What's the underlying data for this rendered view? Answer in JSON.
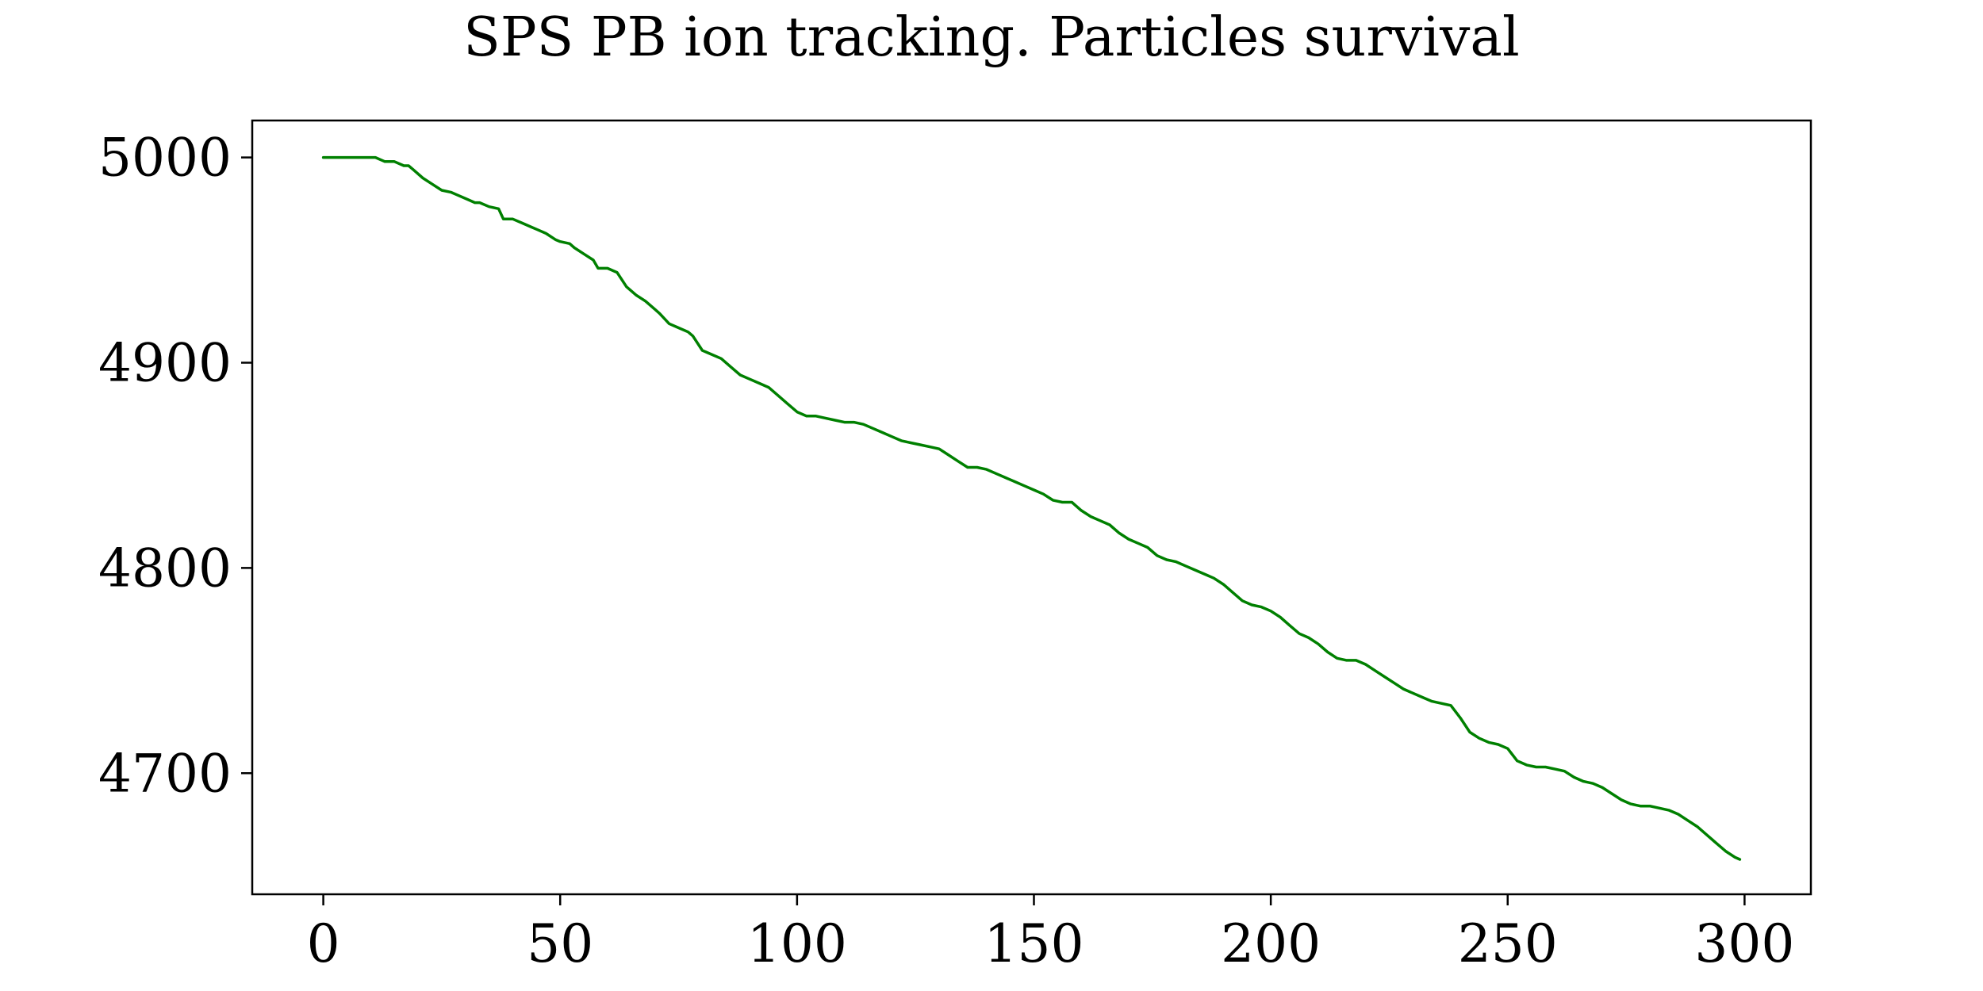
{
  "chart_data": {
    "type": "line",
    "title": "SPS PB ion tracking. Particles survival",
    "xlabel": "",
    "ylabel": "",
    "xlim": [
      -15,
      314
    ],
    "ylim": [
      4641,
      5018
    ],
    "xticks": [
      0,
      50,
      100,
      150,
      200,
      250,
      300
    ],
    "yticks": [
      4700,
      4800,
      4900,
      5000
    ],
    "xtick_labels": [
      "0",
      "50",
      "100",
      "150",
      "200",
      "250",
      "300"
    ],
    "ytick_labels": [
      "4700",
      "4800",
      "4900",
      "5000"
    ],
    "grid": false,
    "legend": "none",
    "line_color": "#008000",
    "series": [
      {
        "x": [
          0,
          5,
          10,
          11,
          13,
          15,
          17,
          18,
          19,
          21,
          23,
          25,
          27,
          28,
          30,
          32,
          33,
          35,
          37,
          38,
          40,
          42,
          44,
          45,
          47,
          49,
          50,
          52,
          53,
          55,
          57,
          58,
          60,
          62,
          64,
          66,
          68,
          70,
          71,
          73,
          75,
          77,
          78,
          80,
          82,
          84,
          86,
          88,
          90,
          92,
          94,
          96,
          98,
          100,
          102,
          104,
          106,
          108,
          110,
          112,
          114,
          116,
          118,
          120,
          122,
          124,
          126,
          128,
          130,
          132,
          134,
          136,
          138,
          140,
          142,
          144,
          146,
          148,
          150,
          152,
          154,
          156,
          158,
          160,
          162,
          164,
          166,
          168,
          170,
          172,
          174,
          176,
          178,
          180,
          182,
          184,
          186,
          188,
          190,
          192,
          194,
          196,
          198,
          200,
          202,
          204,
          206,
          208,
          210,
          212,
          214,
          216,
          218,
          220,
          222,
          224,
          226,
          228,
          230,
          232,
          234,
          236,
          238,
          240,
          242,
          244,
          246,
          248,
          250,
          252,
          254,
          256,
          258,
          260,
          262,
          264,
          266,
          268,
          270,
          272,
          274,
          276,
          278,
          280,
          282,
          284,
          286,
          288,
          290,
          292,
          294,
          296,
          298,
          299
        ],
        "values": [
          5000,
          5000,
          5000,
          5000,
          4998,
          4998,
          4996,
          4996,
          4994,
          4990,
          4987,
          4984,
          4983,
          4982,
          4980,
          4978,
          4978,
          4976,
          4975,
          4970,
          4970,
          4968,
          4966,
          4965,
          4963,
          4960,
          4959,
          4958,
          4956,
          4953,
          4950,
          4946,
          4946,
          4944,
          4937,
          4933,
          4930,
          4926,
          4924,
          4919,
          4917,
          4915,
          4913,
          4906,
          4904,
          4902,
          4898,
          4894,
          4892,
          4890,
          4888,
          4884,
          4880,
          4876,
          4874,
          4874,
          4873,
          4872,
          4871,
          4871,
          4870,
          4868,
          4866,
          4864,
          4862,
          4861,
          4860,
          4859,
          4858,
          4855,
          4852,
          4849,
          4849,
          4848,
          4846,
          4844,
          4842,
          4840,
          4838,
          4836,
          4833,
          4832,
          4832,
          4828,
          4825,
          4823,
          4821,
          4817,
          4814,
          4812,
          4810,
          4806,
          4804,
          4803,
          4801,
          4799,
          4797,
          4795,
          4792,
          4788,
          4784,
          4782,
          4781,
          4779,
          4776,
          4772,
          4768,
          4766,
          4763,
          4759,
          4756,
          4755,
          4755,
          4753,
          4750,
          4747,
          4744,
          4741,
          4739,
          4737,
          4735,
          4734,
          4733,
          4727,
          4720,
          4717,
          4715,
          4714,
          4712,
          4706,
          4704,
          4703,
          4703,
          4702,
          4701,
          4698,
          4696,
          4695,
          4693,
          4690,
          4687,
          4685,
          4684,
          4684,
          4683,
          4682,
          4680,
          4677,
          4674,
          4670,
          4666,
          4662,
          4659,
          4658
        ]
      }
    ]
  }
}
